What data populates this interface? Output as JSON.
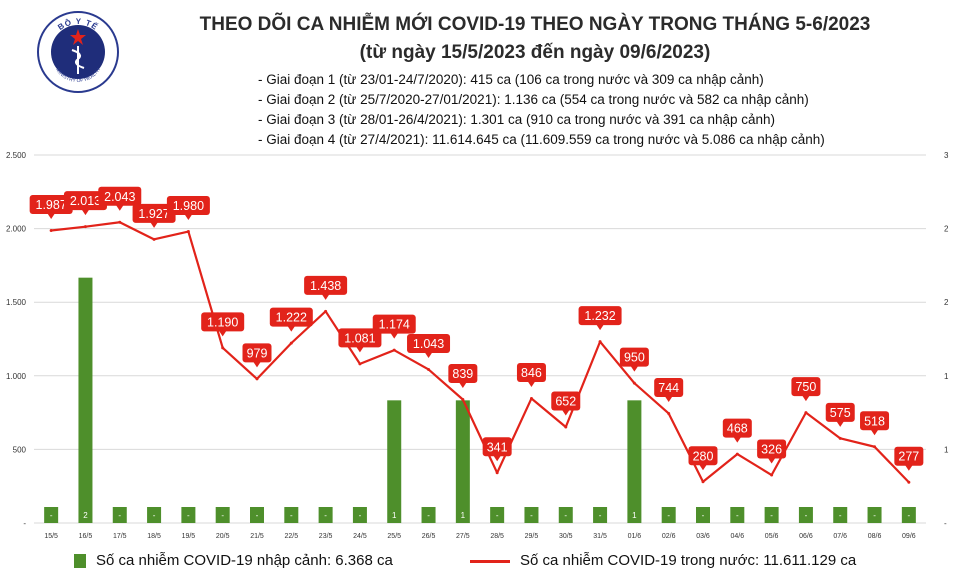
{
  "header": {
    "title": "THEO DÕI CA NHIỄM MỚI COVID-19 THEO NGÀY TRONG THÁNG 5-6/2023",
    "subtitle": "(từ ngày 15/5/2023 đến ngày 09/6/2023)",
    "notes": [
      "- Giai đoạn 1 (từ 23/01-24/7/2020): 415 ca (106 ca trong nước và 309 ca nhập cảnh)",
      "- Giai đoạn 2 (từ 25/7/2020-27/01/2021): 1.136 ca (554 ca trong nước và 582 ca nhập cảnh)",
      "- Giai đoạn 3 (từ 28/01-26/4/2021): 1.301 ca (910 ca trong nước và 391 ca nhập cảnh)",
      "- Giai đoạn 4 (từ 27/4/2021): 11.614.645 ca (11.609.559 ca trong nước và 5.086 ca nhập cảnh)"
    ]
  },
  "logo": {
    "top_text": "BỘ Y TẾ",
    "bottom_text": "MINISTRY OF HEALTH",
    "icon": "caduceus-icon",
    "colors": {
      "ring": "#2a3a8f",
      "inner": "#1f2d7a",
      "star": "#e2231a"
    }
  },
  "colors": {
    "bar": "#4e8f2b",
    "line": "#e2231a",
    "grid": "#d9d9d9",
    "text": "#333333"
  },
  "chart_data": {
    "type": "bar+line",
    "categories": [
      "15/5",
      "16/5",
      "17/5",
      "18/5",
      "19/5",
      "20/5",
      "21/5",
      "22/5",
      "23/5",
      "24/5",
      "25/5",
      "26/5",
      "27/5",
      "28/5",
      "29/5",
      "30/5",
      "31/5",
      "01/6",
      "02/6",
      "03/6",
      "04/6",
      "05/6",
      "06/6",
      "07/6",
      "08/6",
      "09/6"
    ],
    "left_axis": {
      "ylim": [
        0,
        2500
      ],
      "ticks": [
        "-",
        "500",
        "1.000",
        "1.500",
        "2.000",
        "2.500"
      ]
    },
    "right_axis": {
      "ylim": [
        0,
        3
      ],
      "ticks": [
        "-",
        "1",
        "1",
        "2",
        "2",
        "3"
      ]
    },
    "series": [
      {
        "name": "Số ca nhiễm COVID-19 nhập cảnh: 6.368 ca",
        "type": "bar",
        "axis": "right",
        "values": [
          0,
          2,
          0,
          0,
          0,
          0,
          0,
          0,
          0,
          0,
          1,
          0,
          1,
          0,
          0,
          0,
          0,
          1,
          0,
          0,
          0,
          0,
          0,
          0,
          0,
          0
        ],
        "labels": [
          "-",
          "2",
          "-",
          "-",
          "-",
          "-",
          "-",
          "-",
          "-",
          "-",
          "1",
          "-",
          "1",
          "-",
          "-",
          "-",
          "-",
          "1",
          "-",
          "-",
          "-",
          "-",
          "-",
          "-",
          "-",
          "-"
        ]
      },
      {
        "name": "Số ca nhiễm COVID-19 trong nước: 11.611.129 ca",
        "type": "line",
        "axis": "left",
        "values": [
          1987,
          2013,
          2043,
          1927,
          1980,
          1190,
          979,
          1222,
          1438,
          1081,
          1174,
          1043,
          839,
          341,
          846,
          652,
          1232,
          950,
          744,
          280,
          468,
          326,
          750,
          575,
          518,
          277
        ],
        "labels": [
          "1.987",
          "2.013",
          "2.043",
          "1.927",
          "1.980",
          "1.190",
          "979",
          "1.222",
          "1.438",
          "1.081",
          "1.174",
          "1.043",
          "839",
          "341",
          "846",
          "652",
          "1.232",
          "950",
          "744",
          "280",
          "468",
          "326",
          "750",
          "575",
          "518",
          "277"
        ]
      }
    ]
  }
}
